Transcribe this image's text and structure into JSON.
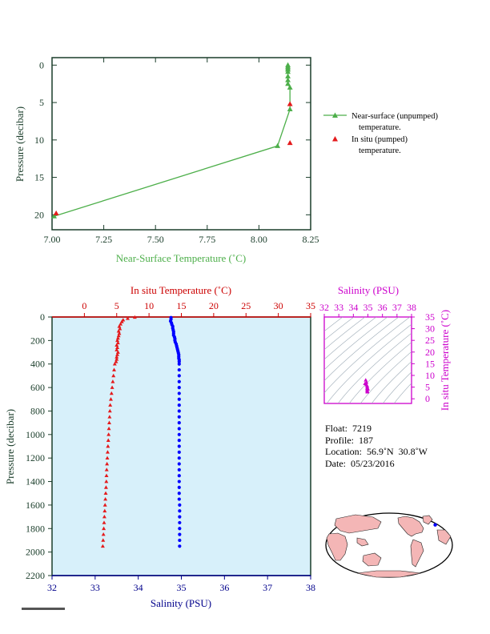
{
  "colors": {
    "near_surface": "#4daf4a",
    "in_situ": "#e41a1c",
    "salinity_axis": "#00008b",
    "salinity_points": "#0000ff",
    "temp_axis": "#cc0000",
    "salinity_box": "#cc00cc",
    "dark_axis": "#1a3d2a",
    "plot_bg": "#d7f0fa",
    "land": "#f4b6b6"
  },
  "chart_data": [
    {
      "type": "line",
      "xlabel": "Near-Surface Temperature (˚C)",
      "ylabel": "Pressure (decibar)",
      "xlim": [
        7.0,
        8.25
      ],
      "ylim": [
        22,
        -1
      ],
      "xticks": [
        "7.00",
        "7.25",
        "7.50",
        "7.75",
        "8.00",
        "8.25"
      ],
      "yticks": [
        "0",
        "5",
        "10",
        "15",
        "20"
      ],
      "legend_position": "right",
      "series": [
        {
          "name": "Near-surface (unpumped) temperature.",
          "marker": "triangle-line",
          "points": [
            [
              8.14,
              0.0
            ],
            [
              8.14,
              0.2
            ],
            [
              8.14,
              0.4
            ],
            [
              8.14,
              0.6
            ],
            [
              8.14,
              0.9
            ],
            [
              8.14,
              1.5
            ],
            [
              8.14,
              2.0
            ],
            [
              8.14,
              2.5
            ],
            [
              8.15,
              3.0
            ],
            [
              8.15,
              5.9
            ],
            [
              8.09,
              10.8
            ],
            [
              7.01,
              20.2
            ]
          ]
        },
        {
          "name": "In situ (pumped) temperature.",
          "marker": "triangle",
          "points": [
            [
              8.15,
              5.2
            ],
            [
              8.15,
              10.4
            ],
            [
              7.02,
              19.8
            ]
          ]
        }
      ]
    },
    {
      "type": "scatter",
      "ylabel": "Pressure (decibar)",
      "top_xlabel": "In situ Temperature (˚C)",
      "bottom_xlabel": "Salinity (PSU)",
      "temp_xlim": [
        -5,
        35
      ],
      "sal_xlim": [
        32,
        38
      ],
      "ylim": [
        2200,
        0
      ],
      "temp_ticks": [
        "0",
        "5",
        "10",
        "15",
        "20",
        "25",
        "30",
        "35"
      ],
      "sal_ticks": [
        "32",
        "33",
        "34",
        "35",
        "36",
        "37",
        "38"
      ],
      "yticks": [
        "0",
        "200",
        "400",
        "600",
        "800",
        "1000",
        "1200",
        "1400",
        "1600",
        "1800",
        "2000",
        "2200"
      ],
      "series": [
        {
          "name": "In situ Temperature",
          "marker": "triangle",
          "points": [
            [
              7.8,
              2
            ],
            [
              6.7,
              12
            ],
            [
              6.0,
              25
            ],
            [
              5.8,
              40
            ],
            [
              5.6,
              60
            ],
            [
              5.4,
              80
            ],
            [
              5.5,
              100
            ],
            [
              5.3,
              120
            ],
            [
              5.4,
              140
            ],
            [
              5.3,
              160
            ],
            [
              5.2,
              180
            ],
            [
              5.1,
              200
            ],
            [
              5.2,
              220
            ],
            [
              5.0,
              240
            ],
            [
              5.1,
              260
            ],
            [
              5.0,
              280
            ],
            [
              5.2,
              300
            ],
            [
              5.1,
              320
            ],
            [
              5.0,
              340
            ],
            [
              5.0,
              360
            ],
            [
              4.9,
              380
            ],
            [
              4.7,
              400
            ],
            [
              4.6,
              450
            ],
            [
              4.5,
              500
            ],
            [
              4.4,
              550
            ],
            [
              4.3,
              600
            ],
            [
              4.2,
              650
            ],
            [
              4.1,
              700
            ],
            [
              4.0,
              750
            ],
            [
              3.95,
              800
            ],
            [
              3.9,
              850
            ],
            [
              3.85,
              900
            ],
            [
              3.8,
              950
            ],
            [
              3.75,
              1000
            ],
            [
              3.7,
              1050
            ],
            [
              3.65,
              1100
            ],
            [
              3.6,
              1150
            ],
            [
              3.55,
              1200
            ],
            [
              3.5,
              1250
            ],
            [
              3.45,
              1300
            ],
            [
              3.42,
              1350
            ],
            [
              3.4,
              1400
            ],
            [
              3.35,
              1450
            ],
            [
              3.3,
              1500
            ],
            [
              3.25,
              1550
            ],
            [
              3.2,
              1600
            ],
            [
              3.15,
              1650
            ],
            [
              3.1,
              1700
            ],
            [
              3.05,
              1750
            ],
            [
              3.0,
              1800
            ],
            [
              2.95,
              1850
            ],
            [
              2.9,
              1900
            ],
            [
              2.85,
              1950
            ]
          ]
        },
        {
          "name": "Salinity",
          "marker": "dot",
          "points": [
            [
              34.76,
              5
            ],
            [
              34.76,
              20
            ],
            [
              34.75,
              35
            ],
            [
              34.77,
              50
            ],
            [
              34.78,
              65
            ],
            [
              34.8,
              80
            ],
            [
              34.8,
              95
            ],
            [
              34.81,
              110
            ],
            [
              34.82,
              125
            ],
            [
              34.82,
              140
            ],
            [
              34.82,
              155
            ],
            [
              34.84,
              170
            ],
            [
              34.85,
              185
            ],
            [
              34.85,
              200
            ],
            [
              34.86,
              215
            ],
            [
              34.88,
              230
            ],
            [
              34.89,
              245
            ],
            [
              34.9,
              260
            ],
            [
              34.91,
              275
            ],
            [
              34.92,
              290
            ],
            [
              34.93,
              305
            ],
            [
              34.94,
              320
            ],
            [
              34.94,
              335
            ],
            [
              34.94,
              350
            ],
            [
              34.95,
              365
            ],
            [
              34.95,
              380
            ],
            [
              34.95,
              400
            ],
            [
              34.95,
              450
            ],
            [
              34.95,
              500
            ],
            [
              34.95,
              550
            ],
            [
              34.95,
              600
            ],
            [
              34.95,
              650
            ],
            [
              34.95,
              700
            ],
            [
              34.95,
              750
            ],
            [
              34.95,
              800
            ],
            [
              34.95,
              850
            ],
            [
              34.95,
              900
            ],
            [
              34.95,
              950
            ],
            [
              34.95,
              1000
            ],
            [
              34.95,
              1050
            ],
            [
              34.95,
              1100
            ],
            [
              34.95,
              1150
            ],
            [
              34.95,
              1200
            ],
            [
              34.95,
              1250
            ],
            [
              34.95,
              1300
            ],
            [
              34.95,
              1350
            ],
            [
              34.95,
              1400
            ],
            [
              34.95,
              1450
            ],
            [
              34.95,
              1500
            ],
            [
              34.95,
              1550
            ],
            [
              34.96,
              1600
            ],
            [
              34.96,
              1650
            ],
            [
              34.96,
              1700
            ],
            [
              34.96,
              1750
            ],
            [
              34.96,
              1800
            ],
            [
              34.96,
              1850
            ],
            [
              34.96,
              1900
            ],
            [
              34.96,
              1950
            ]
          ]
        }
      ]
    },
    {
      "type": "scatter",
      "xlabel": "Salinity (PSU)",
      "ylabel": "In situ Temperature (˚C)",
      "xlim": [
        32,
        38
      ],
      "ylim": [
        -2,
        35
      ],
      "xticks": [
        "32",
        "33",
        "34",
        "35",
        "36",
        "37",
        "38"
      ],
      "yticks": [
        "0",
        "5",
        "10",
        "15",
        "20",
        "25",
        "30",
        "35"
      ],
      "points": [
        [
          34.85,
          8.0
        ],
        [
          34.9,
          7.0
        ],
        [
          34.9,
          6.0
        ],
        [
          34.95,
          5.5
        ],
        [
          34.95,
          5.0
        ],
        [
          34.95,
          4.5
        ],
        [
          34.95,
          4.0
        ],
        [
          34.95,
          3.5
        ],
        [
          34.96,
          3.2
        ],
        [
          34.96,
          2.9
        ],
        [
          34.8,
          6.5
        ],
        [
          35.0,
          4.2
        ]
      ]
    }
  ],
  "float_info": {
    "float": "Float:  7219",
    "profile": "Profile:  187",
    "location": "Location:  56.9˚N  30.8˚W",
    "date": "Date:  05/23/2016"
  },
  "map": {
    "float_location": [
      56.9,
      -30.8
    ]
  }
}
